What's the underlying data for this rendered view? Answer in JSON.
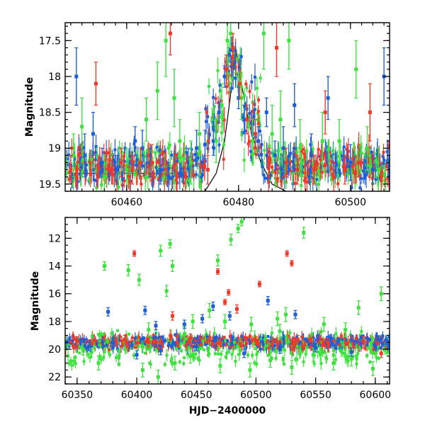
{
  "chart_data": [
    {
      "type": "scatter",
      "panel": "top",
      "title": "",
      "xlabel": "",
      "ylabel": "Magnitude",
      "xlim": [
        60449,
        60507
      ],
      "ylim": [
        19.6,
        17.25
      ],
      "y_inverted": true,
      "x_ticks": [
        60460,
        60480,
        60500
      ],
      "y_ticks": [
        17.5,
        18,
        18.5,
        19,
        19.5
      ],
      "x_tick_labels": [
        "60460",
        "60480",
        "60500"
      ],
      "y_tick_labels": [
        "17.5",
        "18",
        "18.5",
        "19",
        "19.5"
      ],
      "grid": false,
      "legend": "none",
      "series_colors": {
        "blue": "#1f5fd6",
        "green": "#3ee23e",
        "red": "#ee3a2a"
      },
      "model_curve": {
        "color": "#000000",
        "x": [
          60449,
          60470,
          60474,
          60476,
          60477.5,
          60478.5,
          60479.5,
          60480.5,
          60482,
          60484,
          60486,
          60489,
          60507
        ],
        "y": [
          19.62,
          19.62,
          19.6,
          19.35,
          18.9,
          18.3,
          17.6,
          18.1,
          18.7,
          19.2,
          19.5,
          19.62,
          19.62
        ]
      },
      "baseline": {
        "x": [
          60449,
          60470
        ],
        "y": 19.35
      },
      "series": [
        {
          "color": "#1f5fd6",
          "values": [
            [
              60450.2,
              19.4,
              0.15
            ],
            [
              60451.0,
              18.0,
              0.4
            ],
            [
              60452.5,
              19.1,
              0.3
            ],
            [
              60454.0,
              18.8,
              0.3
            ],
            [
              60455.6,
              19.2,
              0.2
            ],
            [
              60458.3,
              19.3,
              0.2
            ],
            [
              60461.5,
              18.9,
              0.2
            ],
            [
              60462.8,
              19.0,
              0.25
            ],
            [
              60464.2,
              19.2,
              0.2
            ],
            [
              60466.0,
              19.3,
              0.2
            ],
            [
              60467.5,
              19.4,
              0.2
            ],
            [
              60471.0,
              19.2,
              0.2
            ],
            [
              60472.5,
              19.0,
              0.25
            ],
            [
              60474.0,
              18.95,
              0.2
            ],
            [
              60475.5,
              18.9,
              0.2
            ],
            [
              60476.5,
              18.5,
              0.15
            ],
            [
              60477.5,
              18.0,
              0.15
            ],
            [
              60478.3,
              17.7,
              0.1
            ],
            [
              60478.8,
              17.55,
              0.1
            ],
            [
              60479.3,
              17.8,
              0.1
            ],
            [
              60480.0,
              18.3,
              0.15
            ],
            [
              60481.0,
              18.6,
              0.2
            ],
            [
              60483.5,
              18.9,
              0.2
            ],
            [
              60485.0,
              18.5,
              0.2
            ],
            [
              60486.5,
              19.1,
              0.2
            ],
            [
              60488.0,
              19.0,
              0.3
            ],
            [
              60490.0,
              18.4,
              0.3
            ],
            [
              60493.0,
              19.1,
              0.3
            ],
            [
              60496.0,
              18.3,
              0.3
            ],
            [
              60500.0,
              19.2,
              0.25
            ],
            [
              60504.0,
              19.3,
              0.2
            ],
            [
              60506.0,
              18.0,
              0.4
            ]
          ]
        },
        {
          "color": "#3ee23e",
          "values": [
            [
              60450.5,
              19.1,
              0.3
            ],
            [
              60452.0,
              18.7,
              0.4
            ],
            [
              60456.0,
              19.4,
              0.3
            ],
            [
              60460.0,
              19.3,
              0.3
            ],
            [
              60463.5,
              18.6,
              0.3
            ],
            [
              60465.5,
              18.2,
              0.4
            ],
            [
              60467.0,
              17.5,
              0.5
            ],
            [
              60468.5,
              18.3,
              0.4
            ],
            [
              60469.5,
              18.9,
              0.3
            ],
            [
              60471.5,
              19.2,
              0.3
            ],
            [
              60473.0,
              18.8,
              0.3
            ],
            [
              60476.0,
              18.9,
              0.3
            ],
            [
              60477.0,
              18.4,
              0.3
            ],
            [
              60478.0,
              17.5,
              0.3
            ],
            [
              60478.6,
              17.4,
              0.2
            ],
            [
              60480.5,
              18.3,
              0.3
            ],
            [
              60482.5,
              18.9,
              0.3
            ],
            [
              60484.5,
              17.4,
              0.5
            ],
            [
              60486.0,
              18.8,
              0.4
            ],
            [
              60487.5,
              18.6,
              0.4
            ],
            [
              60489.0,
              17.5,
              0.4
            ],
            [
              60491.0,
              19.0,
              0.4
            ],
            [
              60495.0,
              18.9,
              0.4
            ],
            [
              60498.0,
              18.9,
              0.3
            ],
            [
              60501.0,
              17.9,
              0.4
            ],
            [
              60503.0,
              19.0,
              0.3
            ],
            [
              60505.0,
              19.3,
              0.3
            ]
          ]
        },
        {
          "color": "#ee3a2a",
          "values": [
            [
              60450.0,
              19.3,
              0.2
            ],
            [
              60454.5,
              18.1,
              0.3
            ],
            [
              60457.5,
              19.3,
              0.2
            ],
            [
              60459.0,
              19.2,
              0.2
            ],
            [
              60461.0,
              19.3,
              0.2
            ],
            [
              60462.5,
              19.2,
              0.2
            ],
            [
              60464.5,
              19.2,
              0.25
            ],
            [
              60467.8,
              17.4,
              0.3
            ],
            [
              60469.0,
              19.4,
              0.2
            ],
            [
              60470.5,
              19.4,
              0.2
            ],
            [
              60474.5,
              19.3,
              0.2
            ],
            [
              60477.8,
              17.9,
              0.2
            ],
            [
              60479.0,
              17.6,
              0.2
            ],
            [
              60480.2,
              18.1,
              0.2
            ],
            [
              60481.5,
              18.6,
              0.2
            ],
            [
              60483.0,
              18.8,
              0.2
            ],
            [
              60485.5,
              19.2,
              0.2
            ],
            [
              60486.8,
              17.6,
              0.4
            ],
            [
              60488.5,
              19.2,
              0.2
            ],
            [
              60490.5,
              19.3,
              0.2
            ],
            [
              60493.5,
              19.3,
              0.2
            ],
            [
              60495.5,
              18.5,
              0.3
            ],
            [
              60497.0,
              19.4,
              0.2
            ],
            [
              60499.0,
              19.3,
              0.2
            ],
            [
              60501.5,
              19.2,
              0.2
            ],
            [
              60503.5,
              18.5,
              0.4
            ],
            [
              60505.5,
              19.4,
              0.2
            ]
          ]
        }
      ]
    },
    {
      "type": "scatter",
      "panel": "bottom",
      "title": "",
      "xlabel": "HJD−2400000",
      "ylabel": "Magnitude",
      "xlim": [
        60340,
        60612
      ],
      "ylim": [
        22.5,
        10.5
      ],
      "y_inverted": true,
      "x_ticks": [
        60350,
        60400,
        60450,
        60500,
        60550,
        60600
      ],
      "y_ticks": [
        12,
        14,
        16,
        18,
        20,
        22
      ],
      "x_tick_labels": [
        "60350",
        "60400",
        "60450",
        "60500",
        "60550",
        "60600"
      ],
      "y_tick_labels": [
        "12",
        "14",
        "16",
        "18",
        "20",
        "22"
      ],
      "grid": false,
      "legend": "none",
      "series_colors": {
        "blue": "#1f5fd6",
        "green": "#3ee23e",
        "red": "#ee3a2a"
      },
      "series": [
        {
          "color": "#3ee23e",
          "values": [
            [
              60373,
              14.0,
              0.3
            ],
            [
              60393,
              14.3,
              0.4
            ],
            [
              60402,
              15.0,
              0.4
            ],
            [
              60420,
              12.9,
              0.4
            ],
            [
              60428,
              12.4,
              0.3
            ],
            [
              60430,
              14.0,
              0.4
            ],
            [
              60425,
              15.8,
              0.4
            ],
            [
              60447,
              18.0,
              0.5
            ],
            [
              60461,
              17.2,
              0.5
            ],
            [
              60468,
              13.6,
              0.4
            ],
            [
              60474,
              18.0,
              0.5
            ],
            [
              60479,
              12.1,
              0.4
            ],
            [
              60485,
              11.3,
              0.3
            ],
            [
              60488,
              10.8,
              0.3
            ],
            [
              60496,
              18.2,
              0.5
            ],
            [
              60518,
              17.8,
              0.5
            ],
            [
              60525,
              17.5,
              0.5
            ],
            [
              60540,
              11.6,
              0.4
            ],
            [
              60557,
              18.2,
              0.5
            ],
            [
              60586,
              17.0,
              0.5
            ],
            [
              60605,
              16.0,
              0.5
            ],
            [
              60355,
              20.0,
              0.4
            ],
            [
              60368,
              21.0,
              0.5
            ],
            [
              60385,
              20.5,
              0.5
            ],
            [
              60405,
              21.5,
              0.5
            ],
            [
              60418,
              22.0,
              0.5
            ],
            [
              60432,
              21.0,
              0.5
            ],
            [
              60445,
              20.5,
              0.5
            ],
            [
              60470,
              21.2,
              0.5
            ],
            [
              60495,
              21.5,
              0.5
            ],
            [
              60512,
              20.8,
              0.5
            ],
            [
              60530,
              21.3,
              0.5
            ],
            [
              60548,
              20.4,
              0.5
            ],
            [
              60565,
              21.0,
              0.5
            ],
            [
              60580,
              20.7,
              0.5
            ],
            [
              60598,
              21.4,
              0.5
            ],
            [
              60410,
              18.6,
              0.5
            ],
            [
              60440,
              18.9,
              0.5
            ],
            [
              60520,
              18.7,
              0.5
            ],
            [
              60575,
              18.6,
              0.5
            ]
          ]
        },
        {
          "color": "#1f5fd6",
          "values": [
            [
              60376,
              17.3,
              0.3
            ],
            [
              60407,
              17.2,
              0.3
            ],
            [
              60416,
              18.3,
              0.3
            ],
            [
              60440,
              18.2,
              0.3
            ],
            [
              60455,
              17.8,
              0.3
            ],
            [
              60464,
              16.9,
              0.3
            ],
            [
              60478,
              17.6,
              0.3
            ],
            [
              60510,
              16.5,
              0.3
            ],
            [
              60533,
              17.5,
              0.3
            ],
            [
              60360,
              19.8,
              0.3
            ],
            [
              60380,
              19.5,
              0.3
            ],
            [
              60400,
              20.4,
              0.3
            ],
            [
              60420,
              20.1,
              0.3
            ],
            [
              60450,
              19.8,
              0.3
            ],
            [
              60490,
              20.3,
              0.3
            ],
            [
              60520,
              20.0,
              0.3
            ],
            [
              60550,
              19.9,
              0.3
            ],
            [
              60580,
              20.2,
              0.3
            ],
            [
              60600,
              19.8,
              0.3
            ]
          ]
        },
        {
          "color": "#ee3a2a",
          "values": [
            [
              60398,
              13.1,
              0.2
            ],
            [
              60468,
              14.4,
              0.2
            ],
            [
              60477,
              15.9,
              0.2
            ],
            [
              60503,
              15.3,
              0.2
            ],
            [
              60474,
              16.6,
              0.2
            ],
            [
              60526,
              13.1,
              0.2
            ],
            [
              60530,
              13.8,
              0.2
            ],
            [
              60484,
              17.1,
              0.3
            ],
            [
              60430,
              17.6,
              0.3
            ],
            [
              60350,
              19.4,
              0.3
            ],
            [
              60390,
              19.3,
              0.3
            ],
            [
              60410,
              19.5,
              0.3
            ],
            [
              60445,
              19.2,
              0.3
            ],
            [
              60470,
              19.5,
              0.3
            ],
            [
              60500,
              19.4,
              0.3
            ],
            [
              60535,
              19.3,
              0.3
            ],
            [
              60560,
              19.5,
              0.3
            ],
            [
              60590,
              19.4,
              0.3
            ],
            [
              60605,
              20.3,
              0.3
            ]
          ]
        }
      ]
    }
  ]
}
